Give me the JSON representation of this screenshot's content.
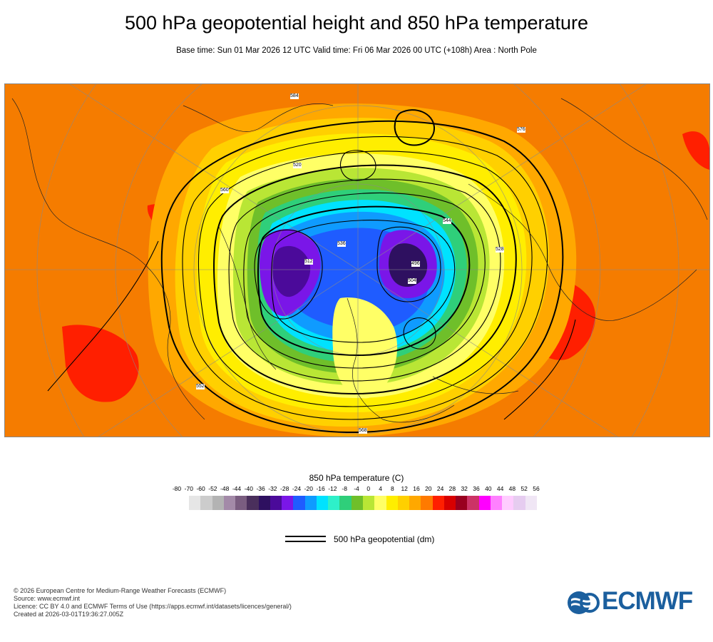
{
  "header": {
    "title": "500 hPa geopotential height and 850 hPa temperature",
    "subtitle": "Base time: Sun 01 Mar 2026 12 UTC Valid time: Fri 06 Mar 2026 00 UTC (+108h) Area : North Pole"
  },
  "map": {
    "area": "North Pole",
    "projection": "polar stereographic",
    "contour_labels": [
      "584",
      "560",
      "536",
      "512",
      "504",
      "528",
      "552",
      "568",
      "576",
      "544",
      "520",
      "496"
    ]
  },
  "legend": {
    "title": "850 hPa temperature (C)",
    "ticks": [
      "-80",
      "-70",
      "-60",
      "-52",
      "-48",
      "-44",
      "-40",
      "-36",
      "-32",
      "-28",
      "-24",
      "-20",
      "-16",
      "-12",
      "-8",
      "-4",
      "0",
      "4",
      "8",
      "12",
      "16",
      "20",
      "24",
      "28",
      "32",
      "36",
      "40",
      "44",
      "48",
      "52",
      "56"
    ],
    "colors": [
      "#e6e6e6",
      "#cccccc",
      "#b3b3b3",
      "#a38aa8",
      "#7a5d80",
      "#4a2f5c",
      "#2e1060",
      "#4b0a9a",
      "#7a16e8",
      "#1f5cff",
      "#0f9bff",
      "#00e2ff",
      "#2ef0c9",
      "#2fcf7a",
      "#6fbf2a",
      "#b9e635",
      "#ffff66",
      "#ffee00",
      "#ffd000",
      "#ffa800",
      "#ff7a00",
      "#ff1f00",
      "#d80000",
      "#99001f",
      "#cc3366",
      "#ff00ff",
      "#ff80ff",
      "#ffccff",
      "#e6ccf0",
      "#f0e6f5"
    ],
    "geopotential_label": "500 hPa geopotential (dm)"
  },
  "footer": {
    "line1": "© 2026 European Centre for Medium-Range Weather Forecasts (ECMWF)",
    "line2": "Source: www.ecmwf.int",
    "line3": "Licence: CC BY 4.0 and ECMWF Terms of Use (https://apps.ecmwf.int/datasets/licences/general/)",
    "line4": "Created at 2026-03-01T19:36:27.005Z",
    "logo_text": "ECMWF"
  }
}
